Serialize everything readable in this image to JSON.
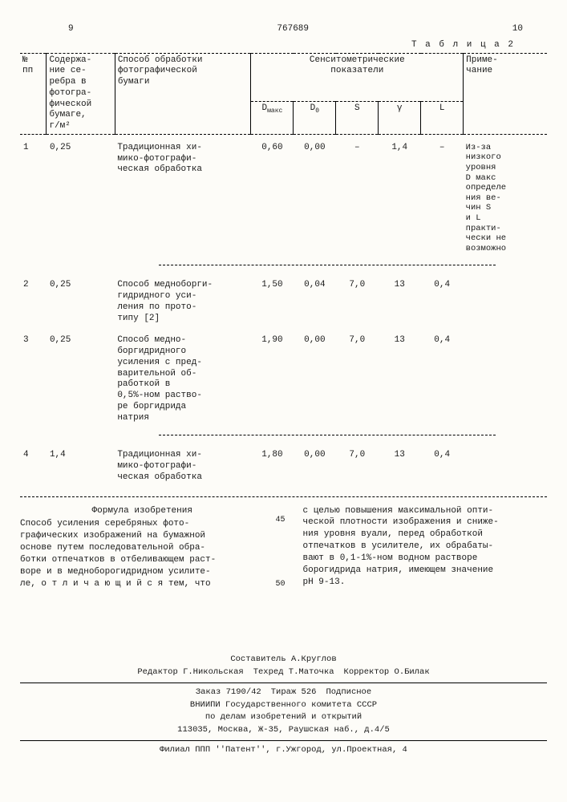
{
  "header": {
    "left_page": "9",
    "patent_no": "767689",
    "right_page": "10",
    "table_label": "Т а б л и ц а 2"
  },
  "columns": {
    "num": "№\nпп",
    "silver": "Содержа-\nние се-\nребра в\nфотогра-\nфической\nбумаге,\nг/м²",
    "method": "Способ обработки\nфотографической\nбумаги",
    "sens_group": "Сенситометрические\nпоказатели",
    "dmax": "Dмакс",
    "d0": "D₀",
    "s": "S",
    "gamma": "γ",
    "l": "L",
    "note": "Приме-\nчание"
  },
  "rows": [
    {
      "n": "1",
      "silver": "0,25",
      "method": "Традиционная хи-\nмико-фотографи-\nческая обработка",
      "dmax": "0,60",
      "d0": "0,00",
      "s": "–",
      "gamma": "1,4",
      "l": "–",
      "note": "Из-за\nнизкого\nуровня\nD макс\nопределе\nния ве-\nчин S\nи L\nпракти-\nчески не\nвозможно"
    },
    {
      "n": "2",
      "silver": "0,25",
      "method": "Способ медноборги-\nгидридного уси-\nления по прото-\nтипу [2]",
      "dmax": "1,50",
      "d0": "0,04",
      "s": "7,0",
      "gamma": "13",
      "l": "0,4",
      "note": ""
    },
    {
      "n": "3",
      "silver": "0,25",
      "method": "Способ медно-\nборгидридного\nусиления с пред-\nварительной об-\nработкой в\n0,5%-ном раство-\nре боргидрида\nнатрия",
      "dmax": "1,90",
      "d0": "0,00",
      "s": "7,0",
      "gamma": "13",
      "l": "0,4",
      "note": ""
    },
    {
      "n": "4",
      "silver": "1,4",
      "method": "Традиционная хи-\nмико-фотографи-\nческая обработка",
      "dmax": "1,80",
      "d0": "0,00",
      "s": "7,0",
      "gamma": "13",
      "l": "0,4",
      "note": ""
    }
  ],
  "formula": {
    "title": "Формула изобретения",
    "left": "Способ усиления серебряных фото-\nграфических изображений на бумажной\nоснове путем последовательной обра-\nботки отпечатков в отбеливающем раст-\nворе и в медноборогидридном усилите-\nле, о т л и ч а ю щ и й с я тем, что",
    "right": "с целью повышения максимальной опти-\nческой плотности изображения и сниже-\nния уровня вуали, перед обработкой\nотпечатков в усилителе, их обрабаты-\nвают в 0,1-1%-ном водном растворе\nборогидрида натрия, имеющем значение\npH 9-13.",
    "line45": "45",
    "line50": "50"
  },
  "footer": {
    "compiler": "Составитель А.Круглов",
    "editor": "Редактор Г.Никольская",
    "techred": "Техред Т.Маточка",
    "corrector": "Корректор О.Билак",
    "order": "Заказ 7190/42",
    "tirage": "Тираж 526",
    "subscription": "Подписное",
    "org1": "ВНИИПИ Государственного комитета СССР",
    "org2": "по делам изобретений и открытий",
    "addr1": "113035, Москва, Ж-35, Раушская наб., д.4/5",
    "branch": "Филиал ППП ''Патент'', г.Ужгород, ул.Проектная, 4"
  }
}
